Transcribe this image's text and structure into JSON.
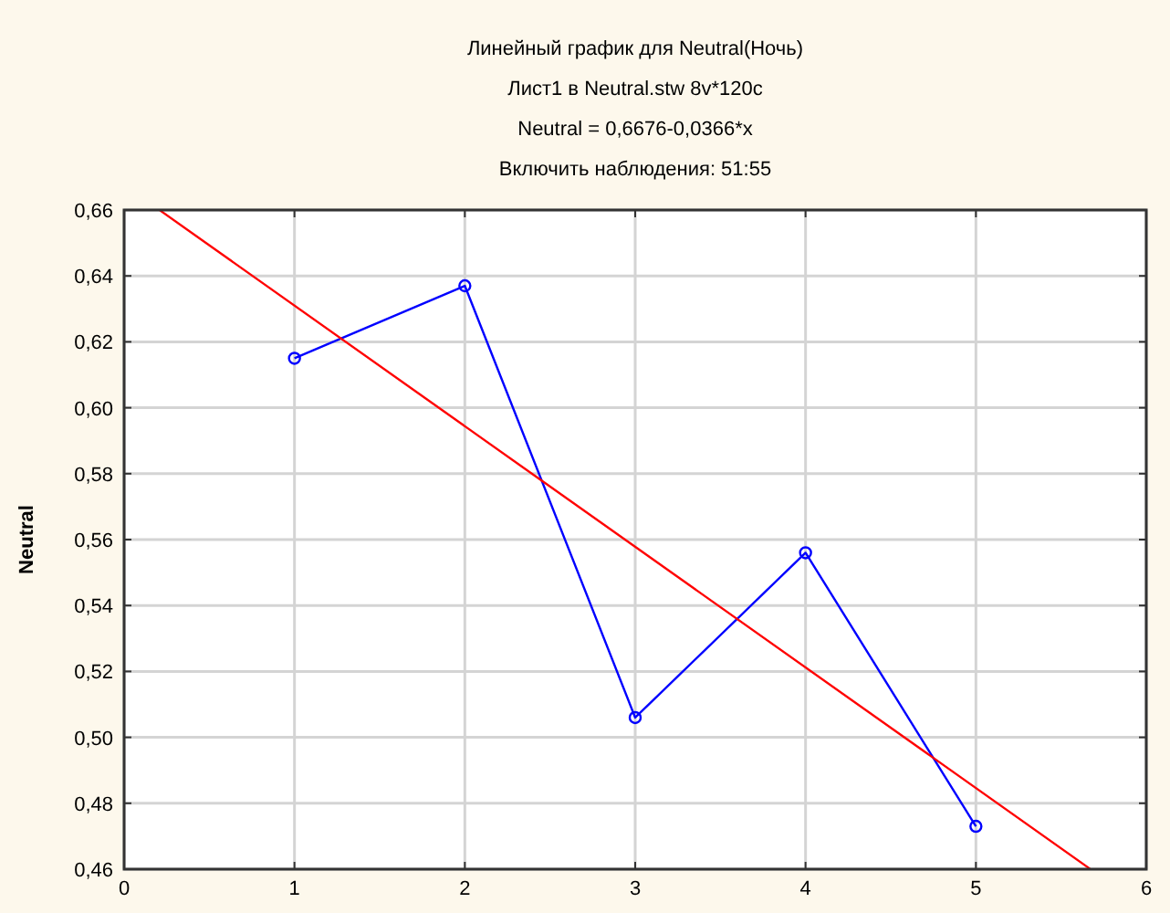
{
  "chart_data": {
    "type": "line",
    "title": "Линейный график для Neutral(Ночь)",
    "subtitle": "Лист1 в Neutral.stw 8v*120c",
    "annotations": [
      "Neutral = 0,6676-0,0366*x",
      "Включить наблюдения: 51:55"
    ],
    "ylabel": "Neutral",
    "x": [
      1,
      2,
      3,
      4,
      5
    ],
    "series": [
      {
        "color": "#0000ff",
        "values": [
          0.615,
          0.637,
          0.506,
          0.556,
          0.473
        ]
      },
      {
        "color": "#ff0000",
        "marker": "none",
        "x": [
          0.21,
          5.67
        ],
        "values": [
          0.6599,
          0.4601
        ]
      }
    ],
    "xlim": [
      0,
      6
    ],
    "xticks": [
      0,
      1,
      2,
      3,
      4,
      5,
      6
    ],
    "ylim": [
      0.46,
      0.66
    ],
    "yticks": [
      {
        "value": 0.46,
        "label": "0,46"
      },
      {
        "value": 0.48,
        "label": "0,48"
      },
      {
        "value": 0.5,
        "label": "0,50"
      },
      {
        "value": 0.52,
        "label": "0,52"
      },
      {
        "value": 0.54,
        "label": "0,54"
      },
      {
        "value": 0.56,
        "label": "0,56"
      },
      {
        "value": 0.58,
        "label": "0,58"
      },
      {
        "value": 0.6,
        "label": "0,60"
      },
      {
        "value": 0.62,
        "label": "0,62"
      },
      {
        "value": 0.64,
        "label": "0,64"
      },
      {
        "value": 0.66,
        "label": "0,66"
      }
    ],
    "grid": true,
    "marker": "circle",
    "line_style": "solid"
  }
}
